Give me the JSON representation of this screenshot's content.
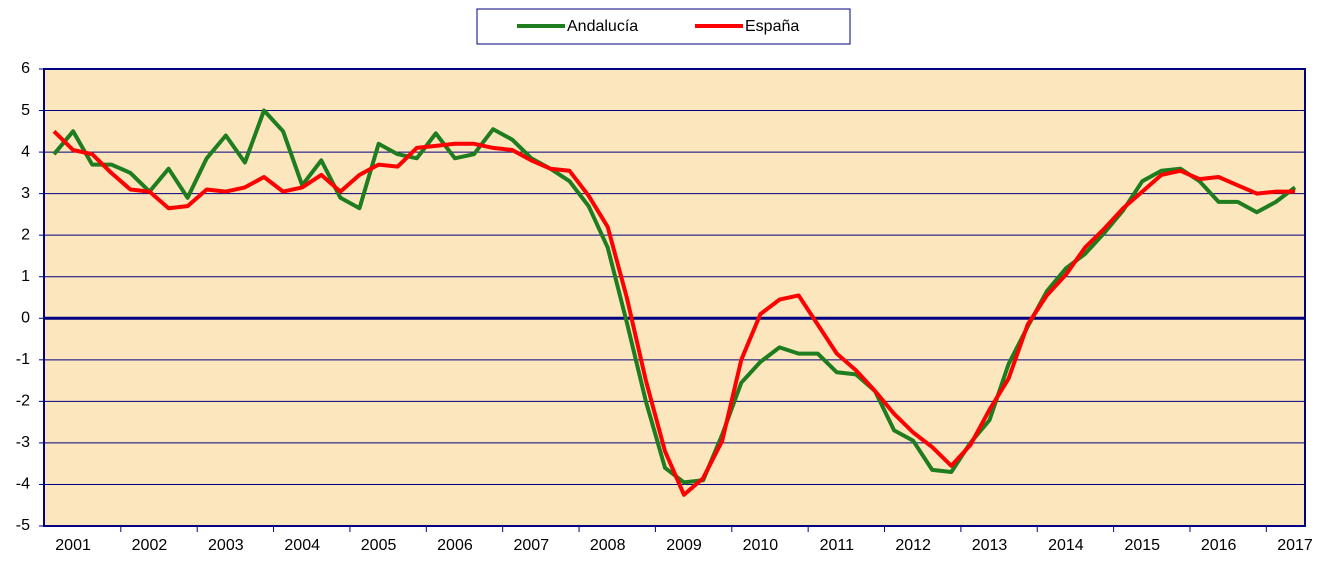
{
  "chart_data": {
    "type": "line",
    "categories": [
      null,
      "2001",
      null,
      null,
      null,
      "2002",
      null,
      null,
      null,
      "2003",
      null,
      null,
      null,
      "2004",
      null,
      null,
      null,
      "2005",
      null,
      null,
      null,
      "2006",
      null,
      null,
      null,
      "2007",
      null,
      null,
      null,
      "2008",
      null,
      null,
      null,
      "2009",
      null,
      null,
      null,
      "2010",
      null,
      null,
      null,
      "2011",
      null,
      null,
      null,
      "2012",
      null,
      null,
      null,
      "2013",
      null,
      null,
      null,
      "2014",
      null,
      null,
      null,
      "2015",
      null,
      null,
      null,
      "2016",
      null,
      null,
      null,
      "2017"
    ],
    "series": [
      {
        "name": "Andalucía",
        "color": "#1e7d1e",
        "values": [
          3.95,
          4.5,
          3.7,
          3.7,
          3.5,
          3.05,
          3.6,
          2.9,
          3.85,
          4.4,
          3.75,
          5.0,
          4.5,
          3.2,
          3.8,
          2.9,
          2.65,
          4.2,
          3.95,
          3.85,
          4.45,
          3.85,
          3.95,
          4.55,
          4.3,
          3.85,
          3.6,
          3.3,
          2.7,
          1.7,
          -0.1,
          -2.0,
          -3.6,
          -3.95,
          -3.9,
          -2.8,
          -1.55,
          -1.05,
          -0.7,
          -0.85,
          -0.85,
          -1.3,
          -1.35,
          -1.75,
          -2.7,
          -2.95,
          -3.65,
          -3.7,
          -3.0,
          -2.45,
          -1.1,
          -0.2,
          0.65,
          1.2,
          1.55,
          2.05,
          2.6,
          3.3,
          3.55,
          3.6,
          3.3,
          2.8,
          2.8,
          2.55,
          2.8,
          3.15
        ]
      },
      {
        "name": "España",
        "color": "#ff0000",
        "values": [
          4.5,
          4.05,
          3.95,
          3.5,
          3.1,
          3.05,
          2.65,
          2.7,
          3.1,
          3.05,
          3.15,
          3.4,
          3.05,
          3.15,
          3.45,
          3.05,
          3.45,
          3.7,
          3.65,
          4.1,
          4.15,
          4.2,
          4.2,
          4.1,
          4.05,
          3.8,
          3.6,
          3.55,
          2.95,
          2.2,
          0.5,
          -1.5,
          -3.2,
          -4.25,
          -3.85,
          -2.95,
          -1.0,
          0.1,
          0.45,
          0.55,
          -0.15,
          -0.85,
          -1.25,
          -1.75,
          -2.3,
          -2.75,
          -3.1,
          -3.55,
          -3.05,
          -2.2,
          -1.45,
          -0.15,
          0.55,
          1.05,
          1.7,
          2.15,
          2.65,
          3.05,
          3.45,
          3.55,
          3.35,
          3.4,
          3.2,
          3.0,
          3.05,
          3.05
        ]
      }
    ],
    "ylim": [
      -5,
      6
    ],
    "yticks": [
      -5,
      -4,
      -3,
      -2,
      -1,
      0,
      1,
      2,
      3,
      4,
      5,
      6
    ],
    "grid": true,
    "legend": "top"
  }
}
